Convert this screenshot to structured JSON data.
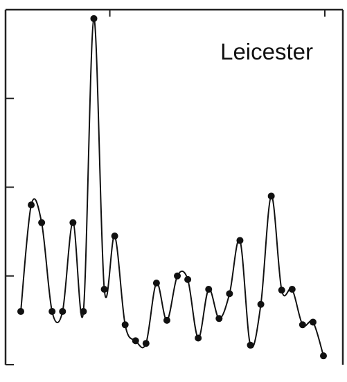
{
  "chart_data": {
    "type": "line",
    "annotation": "Leicester",
    "xlim": [
      0,
      30
    ],
    "ylim": [
      0,
      4
    ],
    "grid": false,
    "x": [
      0,
      1,
      2,
      3,
      4,
      5,
      6,
      7,
      8,
      9,
      10,
      11,
      12,
      13,
      14,
      15,
      16,
      17,
      18,
      19,
      20,
      21,
      22,
      23,
      24,
      25,
      26,
      27,
      28,
      29
    ],
    "series": [
      {
        "values": [
          0.6,
          1.8,
          1.6,
          0.6,
          0.6,
          1.6,
          0.6,
          3.9,
          0.85,
          1.45,
          0.45,
          0.27,
          0.24,
          0.92,
          0.5,
          1.0,
          0.96,
          0.3,
          0.85,
          0.52,
          0.8,
          1.4,
          0.22,
          0.68,
          1.9,
          0.84,
          0.85,
          0.45,
          0.48,
          0.1
        ]
      }
    ],
    "y_ticks": [
      0,
      1,
      2,
      3,
      4
    ],
    "x_ticks": [
      8,
      29
    ]
  }
}
